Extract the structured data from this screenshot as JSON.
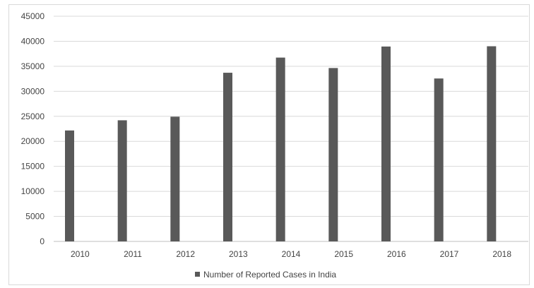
{
  "chart_data": {
    "type": "bar",
    "title": "",
    "xlabel": "",
    "ylabel": "",
    "categories": [
      "2010",
      "2011",
      "2012",
      "2013",
      "2014",
      "2015",
      "2016",
      "2017",
      "2018"
    ],
    "series": [
      {
        "name": "Number of Reported Cases in India",
        "values": [
          22172,
          24206,
          24923,
          33707,
          36735,
          34651,
          38947,
          32559,
          39000
        ],
        "color": "#595959"
      }
    ],
    "ylim": [
      0,
      45000
    ],
    "yticks": [
      "0",
      "5000",
      "10000",
      "15000",
      "20000",
      "25000",
      "30000",
      "35000",
      "40000",
      "45000"
    ],
    "grid": true,
    "legend_position": "bottom"
  }
}
